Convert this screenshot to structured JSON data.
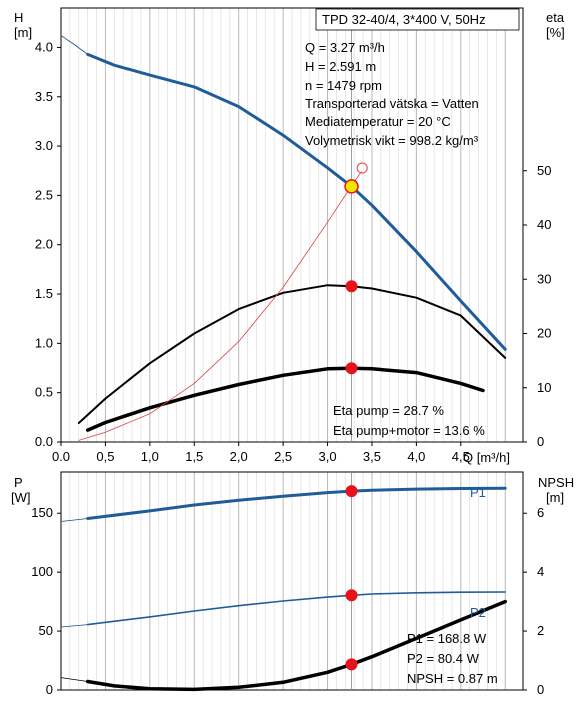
{
  "chart_data": [
    {
      "type": "line",
      "left_axis_label": "H",
      "left_axis_unit": "[m]",
      "right_axis_label": "eta",
      "right_axis_unit": "[%]",
      "xlabel": "Q [m³/h]",
      "xlim": [
        0,
        5.2
      ],
      "ylim_left": [
        0,
        4.4
      ],
      "ylim_right": [
        0,
        80
      ],
      "x_ticks": [
        "0.0",
        "0,5",
        "1,0",
        "1,5",
        "2,0",
        "2,5",
        "3,0",
        "3,5",
        "4,0",
        "4,5"
      ],
      "x_tick_values": [
        0,
        0.5,
        1.0,
        1.5,
        2.0,
        2.5,
        3.0,
        3.5,
        4.0,
        4.5
      ],
      "y_ticks_left": [
        "0.0",
        "0.5",
        "1.0",
        "1.5",
        "2.0",
        "2.5",
        "3.0",
        "3.5",
        "4.0"
      ],
      "y_tick_values_left": [
        0,
        0.5,
        1.0,
        1.5,
        2.0,
        2.5,
        3.0,
        3.5,
        4.0
      ],
      "y_ticks_right": [
        "0",
        "10",
        "20",
        "30",
        "40",
        "50"
      ],
      "y_tick_values_right": [
        0,
        10,
        20,
        30,
        40,
        50
      ],
      "info_box_title": "TPD 32-40/4, 3*400 V, 50Hz",
      "info_lines": [
        "Q = 3.27 m³/h",
        "H = 2.591 m",
        "n = 1479 rpm",
        "Transporterad vätska = Vatten",
        "Mediatemperatur = 20 °C",
        "Volymetrisk vikt = 998.2 kg/m³"
      ],
      "bottom_labels": [
        "Eta pump = 28.7 %",
        "Eta pump+motor = 13.6 %"
      ],
      "operating_point": {
        "x": 3.27,
        "H": 2.591,
        "eta_pump": 28.7,
        "eta_total": 13.6
      },
      "series": [
        {
          "key": "H_ext",
          "axis": "left",
          "color": "#1f4e79",
          "width": 0.8,
          "x": [
            0,
            0.15,
            0.3
          ],
          "y": [
            4.12,
            4.03,
            3.93
          ]
        },
        {
          "key": "H",
          "axis": "left",
          "color": "#1f5c99",
          "width": 3,
          "x": [
            0.3,
            0.6,
            1.0,
            1.5,
            2.0,
            2.5,
            3.0,
            3.27,
            3.5,
            4.0,
            4.5,
            5.0
          ],
          "y": [
            3.93,
            3.82,
            3.72,
            3.6,
            3.4,
            3.11,
            2.78,
            2.591,
            2.4,
            1.93,
            1.43,
            0.94
          ]
        },
        {
          "key": "eta_pump",
          "axis": "right",
          "color": "#000000",
          "width": 2,
          "x": [
            0.2,
            0.5,
            1.0,
            1.5,
            2.0,
            2.5,
            3.0,
            3.27,
            3.5,
            4.0,
            4.5,
            5.0
          ],
          "y": [
            3.5,
            8,
            14.5,
            20,
            24.5,
            27.5,
            28.9,
            28.7,
            28.3,
            26.6,
            23.3,
            15.5
          ]
        },
        {
          "key": "eta_total",
          "axis": "right",
          "color": "#000000",
          "width": 3.5,
          "x": [
            0.3,
            0.5,
            1.0,
            1.5,
            2.0,
            2.5,
            3.0,
            3.27,
            3.5,
            4.0,
            4.5,
            4.75
          ],
          "y": [
            2.2,
            3.6,
            6.3,
            8.6,
            10.6,
            12.3,
            13.5,
            13.6,
            13.5,
            12.8,
            10.8,
            9.5
          ]
        },
        {
          "key": "eta_aux",
          "axis": "right",
          "color": "#e04040",
          "width": 0.8,
          "x": [
            0.2,
            0.5,
            1.0,
            1.5,
            2.0,
            2.5,
            3.0,
            3.27,
            3.38
          ],
          "y": [
            0.3,
            1.8,
            5.2,
            10.8,
            18.5,
            28.5,
            40.5,
            47.2,
            49.8
          ]
        }
      ]
    },
    {
      "type": "line",
      "left_axis_label": "P",
      "left_axis_unit": "[W]",
      "right_axis_label": "NPSH",
      "right_axis_unit": "[m]",
      "xlim": [
        0,
        5.2
      ],
      "ylim_left": [
        0,
        185
      ],
      "ylim_right": [
        0,
        7.4
      ],
      "y_ticks_left": [
        "0",
        "50",
        "100",
        "150"
      ],
      "y_tick_values_left": [
        0,
        50,
        100,
        150
      ],
      "y_ticks_right": [
        "0",
        "2",
        "4",
        "6"
      ],
      "y_tick_values_right": [
        0,
        2,
        4,
        6
      ],
      "bottom_labels": [
        "P1 = 168.8 W",
        "P2 = 80.4 W",
        "NPSH = 0.87 m"
      ],
      "operating_point": {
        "x": 3.27,
        "P1": 168.8,
        "P2": 80.4,
        "NPSH": 0.87
      },
      "series": [
        {
          "key": "P1_ext",
          "axis": "left",
          "color": "#1f4e79",
          "width": 0.8,
          "x": [
            0,
            0.3
          ],
          "y": [
            143,
            145.5
          ]
        },
        {
          "key": "P1",
          "name": "P1",
          "axis": "left",
          "color": "#1f5c99",
          "width": 3,
          "x": [
            0.3,
            1.0,
            1.5,
            2.0,
            2.5,
            3.0,
            3.27,
            3.5,
            4.0,
            4.5,
            5.0
          ],
          "y": [
            145.5,
            152,
            157,
            161,
            164.5,
            167.5,
            168.8,
            169.5,
            170.5,
            171,
            171.2
          ]
        },
        {
          "key": "P2_ext",
          "axis": "left",
          "color": "#1f4e79",
          "width": 0.8,
          "x": [
            0,
            0.3
          ],
          "y": [
            53.5,
            55.5
          ]
        },
        {
          "key": "P2",
          "name": "P2",
          "axis": "left",
          "color": "#1f5c99",
          "width": 1.6,
          "x": [
            0.3,
            1.0,
            1.5,
            2.0,
            2.5,
            3.0,
            3.27,
            3.5,
            4.0,
            4.5,
            5.0
          ],
          "y": [
            55.5,
            62,
            67,
            71.5,
            75.5,
            78.8,
            80.4,
            81.5,
            82.5,
            83,
            83.2
          ]
        },
        {
          "key": "NPSH_ext",
          "axis": "right",
          "color": "#000000",
          "width": 0.8,
          "x": [
            0,
            0.3
          ],
          "y": [
            0.42,
            0.29
          ]
        },
        {
          "key": "NPSH",
          "axis": "right",
          "color": "#000000",
          "width": 3.5,
          "x": [
            0.3,
            0.6,
            1.0,
            1.5,
            2.0,
            2.5,
            3.0,
            3.27,
            3.5,
            4.0,
            4.5,
            5.0
          ],
          "y": [
            0.29,
            0.14,
            0.04,
            0.02,
            0.09,
            0.26,
            0.6,
            0.87,
            1.13,
            1.75,
            2.38,
            3.0
          ]
        }
      ]
    }
  ]
}
